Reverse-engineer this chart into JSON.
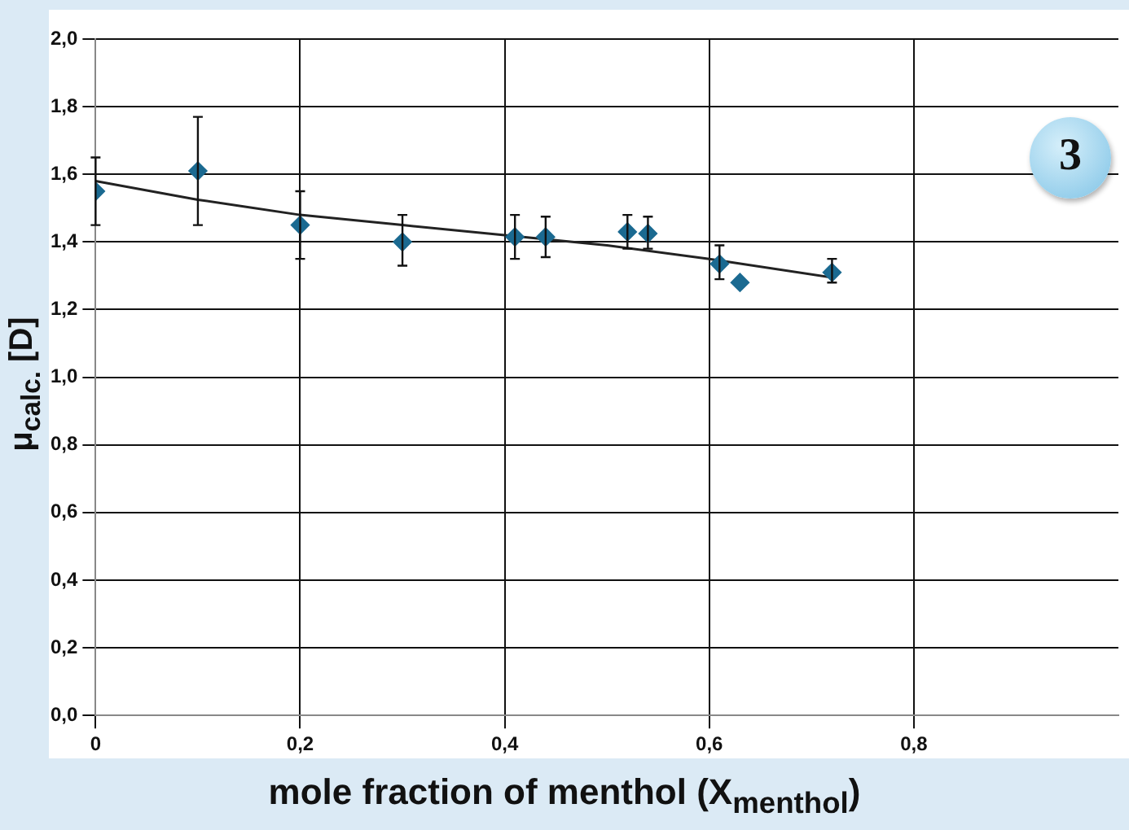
{
  "chart_data": {
    "type": "scatter",
    "xlabel": "mole fraction of menthol (X$_{menthol}$)",
    "ylabel": "μ$_{calc.}$ [D]",
    "annotations": [
      "3"
    ],
    "x": [
      0,
      0.1,
      0.2,
      0.3,
      0.41,
      0.44,
      0.52,
      0.54,
      0.61,
      0.63,
      0.72
    ],
    "series": [
      {
        "type": "scatter",
        "color": "#1b6a91",
        "values": [
          1.55,
          1.61,
          1.45,
          1.4,
          1.415,
          1.415,
          1.43,
          1.425,
          1.335,
          1.28,
          1.31
        ],
        "errors": [
          [
            1.45,
            1.65
          ],
          [
            1.45,
            1.77
          ],
          [
            1.35,
            1.55
          ],
          [
            1.33,
            1.48
          ],
          [
            1.35,
            1.48
          ],
          [
            1.355,
            1.475
          ],
          [
            1.38,
            1.48
          ],
          [
            1.38,
            1.475
          ],
          [
            1.29,
            1.39
          ],
          null,
          [
            1.28,
            1.35
          ]
        ],
        "marker": "diamond"
      },
      {
        "type": "line",
        "color": "#222222",
        "x": [
          0,
          0.1,
          0.2,
          0.3,
          0.4,
          0.5,
          0.6,
          0.72
        ],
        "values": [
          1.58,
          1.525,
          1.48,
          1.45,
          1.42,
          1.39,
          1.35,
          1.295
        ],
        "marker": "none",
        "line_style": "solid"
      }
    ],
    "xlim": [
      0,
      1
    ],
    "xticks": [
      {
        "value": 0,
        "label": "0"
      },
      {
        "value": 0.2,
        "label": "0,2"
      },
      {
        "value": 0.4,
        "label": "0,4"
      },
      {
        "value": 0.6,
        "label": "0,6"
      },
      {
        "value": 0.8,
        "label": "0,8"
      }
    ],
    "ylim": [
      0,
      2
    ],
    "yticks": [
      {
        "value": 0,
        "label": "0,0"
      },
      {
        "value": 0.2,
        "label": "0,2"
      },
      {
        "value": 0.4,
        "label": "0,4"
      },
      {
        "value": 0.6,
        "label": "0,6"
      },
      {
        "value": 0.8,
        "label": "0,8"
      },
      {
        "value": 1,
        "label": "1,0"
      },
      {
        "value": 1.2,
        "label": "1,2"
      },
      {
        "value": 1.4,
        "label": "1,4"
      },
      {
        "value": 1.6,
        "label": "1,6"
      },
      {
        "value": 1.8,
        "label": "1,8"
      },
      {
        "value": 2,
        "label": "2,0"
      }
    ],
    "grid": true,
    "legend": false
  }
}
